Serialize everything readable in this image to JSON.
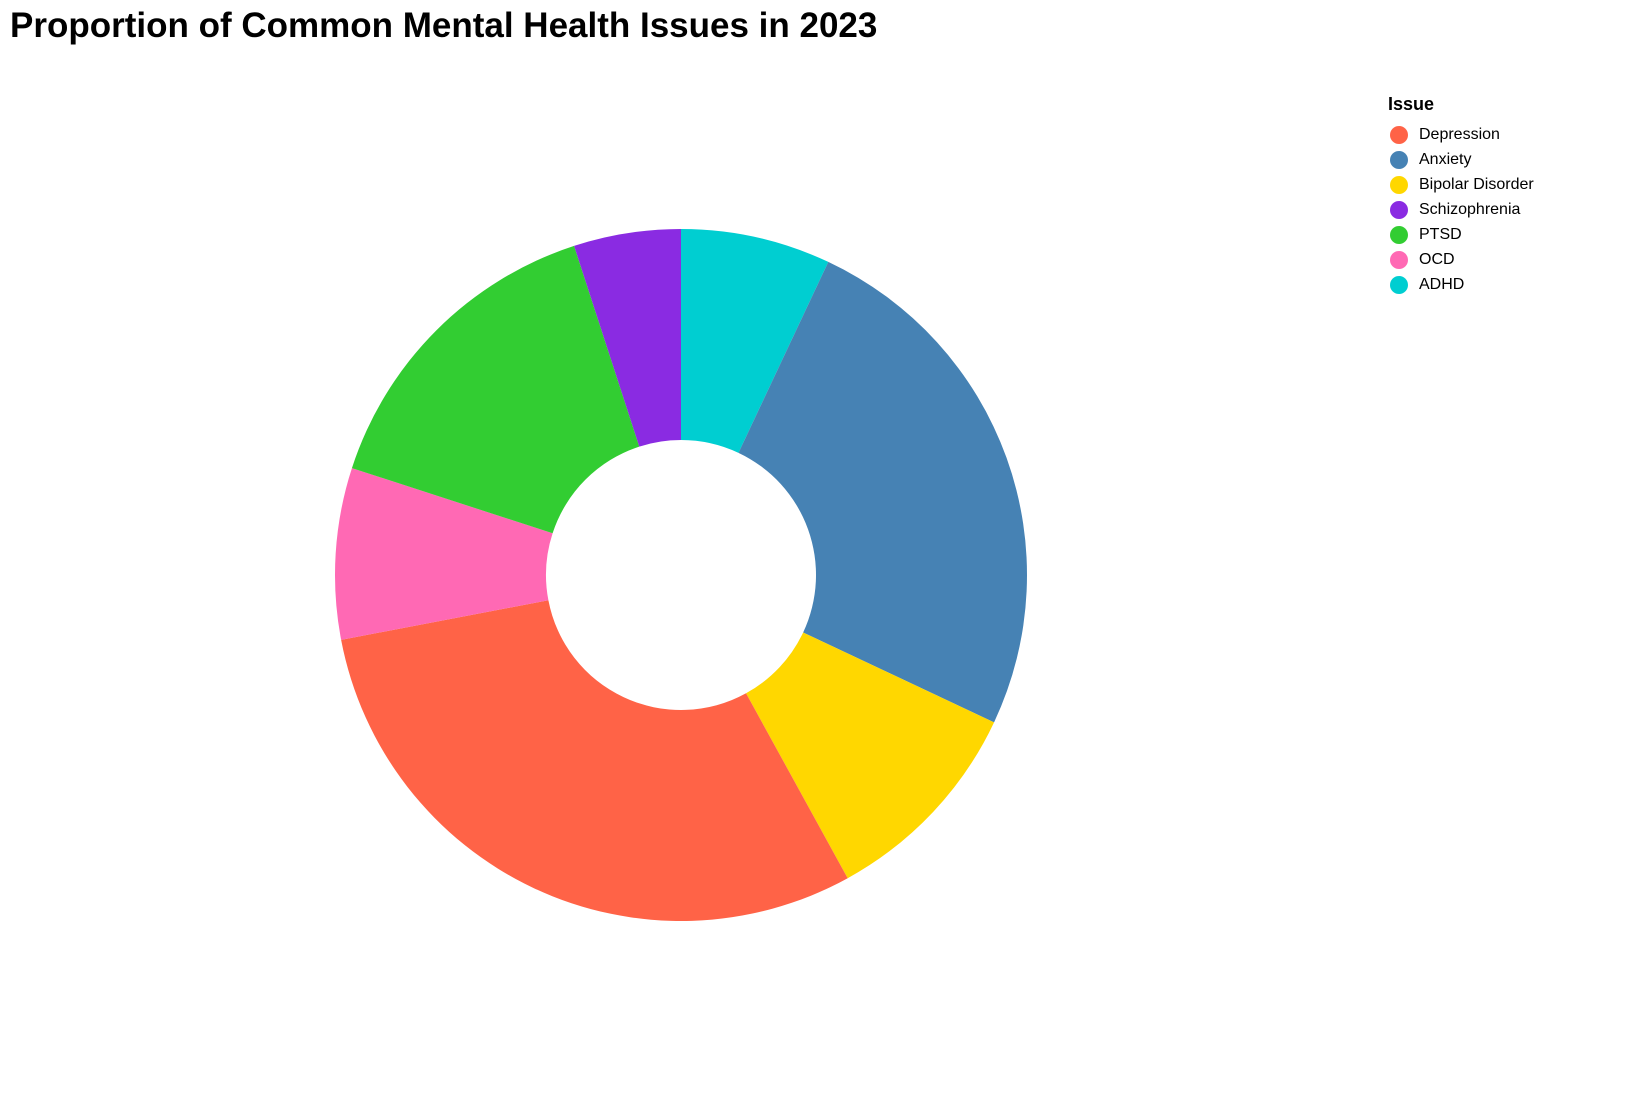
{
  "chart_data": {
    "type": "pie",
    "variant": "donut",
    "title": "Proportion of Common Mental Health Issues in 2023",
    "legend": {
      "title": "Issue",
      "placement": "right"
    },
    "slices": [
      {
        "label": "Depression",
        "value": 30,
        "color": "#FF6347"
      },
      {
        "label": "Anxiety",
        "value": 25,
        "color": "#4682B4"
      },
      {
        "label": "Bipolar Disorder",
        "value": 10,
        "color": "#FFD700"
      },
      {
        "label": "Schizophrenia",
        "value": 5,
        "color": "#8A2BE2"
      },
      {
        "label": "PTSD",
        "value": 15,
        "color": "#32CD32"
      },
      {
        "label": "OCD",
        "value": 8,
        "color": "#FF69B4"
      },
      {
        "label": "ADHD",
        "value": 7,
        "color": "#00CED1"
      }
    ],
    "draw_order": [
      "ADHD",
      "Anxiety",
      "Bipolar Disorder",
      "Depression",
      "OCD",
      "PTSD",
      "Schizophrenia"
    ]
  }
}
